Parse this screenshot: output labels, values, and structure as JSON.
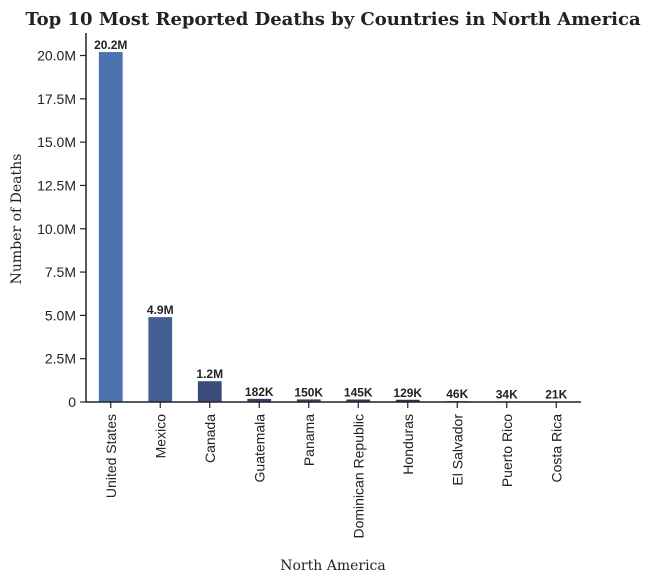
{
  "chart_data": {
    "type": "bar",
    "title": "Top 10 Most Reported Deaths by Countries in North America",
    "xlabel": "North America",
    "ylabel": "Number of Deaths",
    "categories": [
      "United States",
      "Mexico",
      "Canada",
      "Guatemala",
      "Panama",
      "Dominican Republic",
      "Honduras",
      "El Salvador",
      "Puerto Rico",
      "Costa Rica"
    ],
    "values": [
      20200000,
      4900000,
      1200000,
      182000,
      150000,
      145000,
      129000,
      46000,
      34000,
      21000
    ],
    "data_labels": [
      "20.2M",
      "4.9M",
      "1.2M",
      "182K",
      "150K",
      "145K",
      "129K",
      "46K",
      "34K",
      "21K"
    ],
    "colors": [
      "#4c72b0",
      "#435f94",
      "#394c7a",
      "#34426a",
      "#33415f",
      "#313c58",
      "#2e3652",
      "#2b304b",
      "#292c45",
      "#272840"
    ],
    "ylim": [
      0,
      21300000
    ],
    "yticks": [
      0,
      2500000,
      5000000,
      7500000,
      10000000,
      12500000,
      15000000,
      17500000,
      20000000
    ],
    "ytick_labels": [
      "0",
      "2.5M",
      "5.0M",
      "7.5M",
      "10.0M",
      "12.5M",
      "15.0M",
      "17.5M",
      "20.0M"
    ],
    "grid": false,
    "legend": false
  }
}
